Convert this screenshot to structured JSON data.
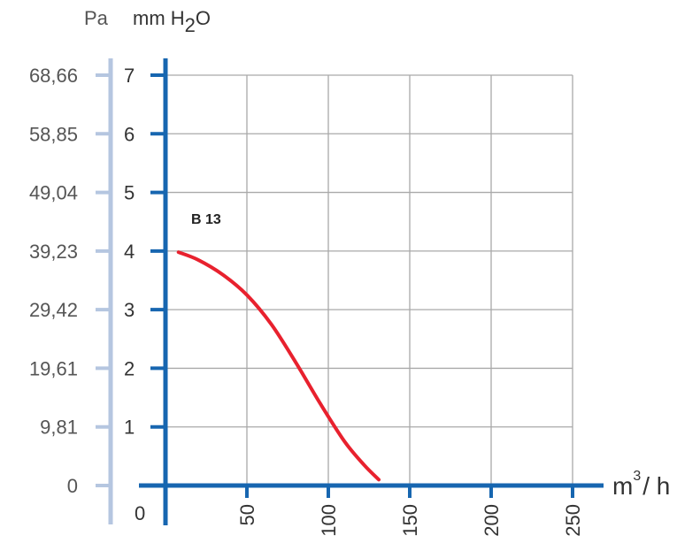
{
  "chart_data": {
    "type": "line",
    "units": {
      "pa": "Pa",
      "mm_prefix": "mm H",
      "mm_sub": "2",
      "mm_suffix": "O",
      "x_prefix": "m",
      "x_sup": "3",
      "x_suffix": "/ h"
    },
    "x_axis": {
      "range": [
        0,
        250
      ],
      "ticks": [
        {
          "value": 0,
          "label": "0"
        },
        {
          "value": 50,
          "label": "50"
        },
        {
          "value": 100,
          "label": "100"
        },
        {
          "value": 150,
          "label": "150"
        },
        {
          "value": 200,
          "label": "200"
        },
        {
          "value": 250,
          "label": "250"
        }
      ]
    },
    "y_axis": {
      "range": [
        0,
        7
      ],
      "ticks": [
        {
          "value": 1,
          "label": "1"
        },
        {
          "value": 2,
          "label": "2"
        },
        {
          "value": 3,
          "label": "3"
        },
        {
          "value": 4,
          "label": "4"
        },
        {
          "value": 5,
          "label": "5"
        },
        {
          "value": 6,
          "label": "6"
        },
        {
          "value": 7,
          "label": "7"
        }
      ]
    },
    "y2_axis": {
      "ticks": [
        {
          "value": 0,
          "label": "0"
        },
        {
          "value": 1,
          "label": "9,81"
        },
        {
          "value": 2,
          "label": "19,61"
        },
        {
          "value": 3,
          "label": "29,42"
        },
        {
          "value": 4,
          "label": "39,23"
        },
        {
          "value": 5,
          "label": "49,04"
        },
        {
          "value": 6,
          "label": "58,85"
        },
        {
          "value": 7,
          "label": "68,66"
        }
      ]
    },
    "grid": true,
    "series": [
      {
        "name": "B 13",
        "color": "#e8212e",
        "points": [
          [
            8,
            3.98
          ],
          [
            20,
            3.85
          ],
          [
            35,
            3.6
          ],
          [
            50,
            3.25
          ],
          [
            65,
            2.75
          ],
          [
            80,
            2.1
          ],
          [
            95,
            1.4
          ],
          [
            110,
            0.75
          ],
          [
            122,
            0.35
          ],
          [
            131,
            0.1
          ]
        ]
      }
    ],
    "colors": {
      "axis": "#1766b0",
      "secondary_axis": "#b5c6e0",
      "grid": "#a9a9a9",
      "text": "#333333",
      "secondary_text": "#555555"
    }
  }
}
